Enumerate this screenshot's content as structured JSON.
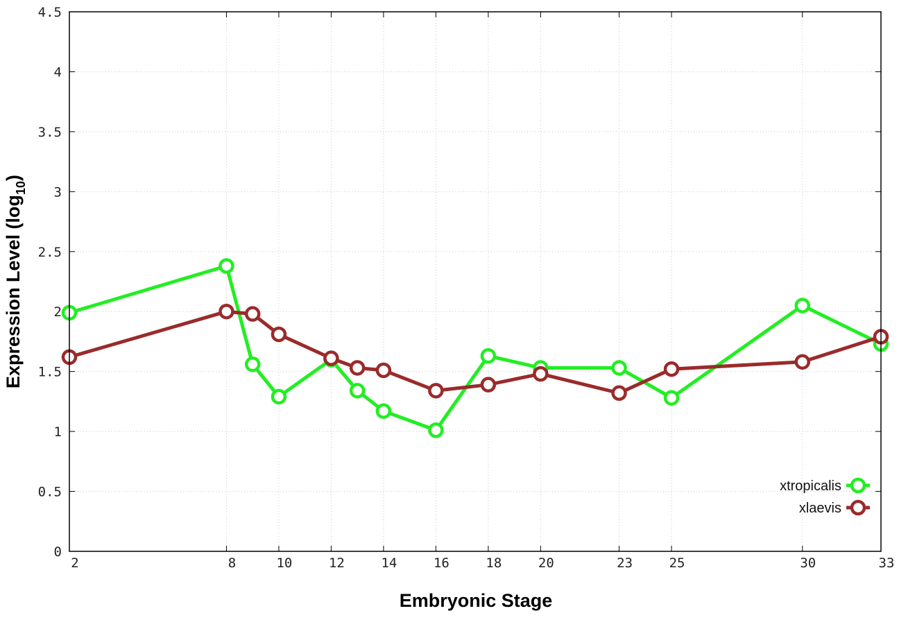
{
  "chart_data": {
    "type": "line",
    "xlabel": "Embryonic Stage",
    "ylabel": {
      "main": "Expression Level (log",
      "sub": "10",
      "close": ")"
    },
    "x_ticks": [
      2,
      8,
      10,
      12,
      14,
      16,
      18,
      20,
      23,
      25,
      30,
      33
    ],
    "y_ticks": [
      "0",
      "0.5",
      "1",
      "1.5",
      "2",
      "2.5",
      "3",
      "3.5",
      "4",
      "4.5"
    ],
    "xlim": [
      2,
      33
    ],
    "ylim": [
      0,
      4.5
    ],
    "grid": true,
    "legend_position": "bottom-right",
    "series": [
      {
        "name": "xtropicalis",
        "color": "#22ee22",
        "points": [
          [
            2,
            1.99
          ],
          [
            8,
            2.38
          ],
          [
            9,
            1.56
          ],
          [
            10,
            1.29
          ],
          [
            12,
            1.6
          ],
          [
            13,
            1.34
          ],
          [
            14,
            1.17
          ],
          [
            16,
            1.01
          ],
          [
            18,
            1.63
          ],
          [
            20,
            1.53
          ],
          [
            23,
            1.53
          ],
          [
            25,
            1.28
          ],
          [
            30,
            2.05
          ],
          [
            33,
            1.73
          ]
        ]
      },
      {
        "name": "xlaevis",
        "color": "#9a2b2b",
        "points": [
          [
            2,
            1.62
          ],
          [
            8,
            2.0
          ],
          [
            9,
            1.98
          ],
          [
            10,
            1.81
          ],
          [
            12,
            1.61
          ],
          [
            13,
            1.53
          ],
          [
            14,
            1.51
          ],
          [
            16,
            1.34
          ],
          [
            18,
            1.39
          ],
          [
            20,
            1.48
          ],
          [
            23,
            1.32
          ],
          [
            25,
            1.52
          ],
          [
            30,
            1.58
          ],
          [
            33,
            1.79
          ]
        ]
      }
    ]
  }
}
